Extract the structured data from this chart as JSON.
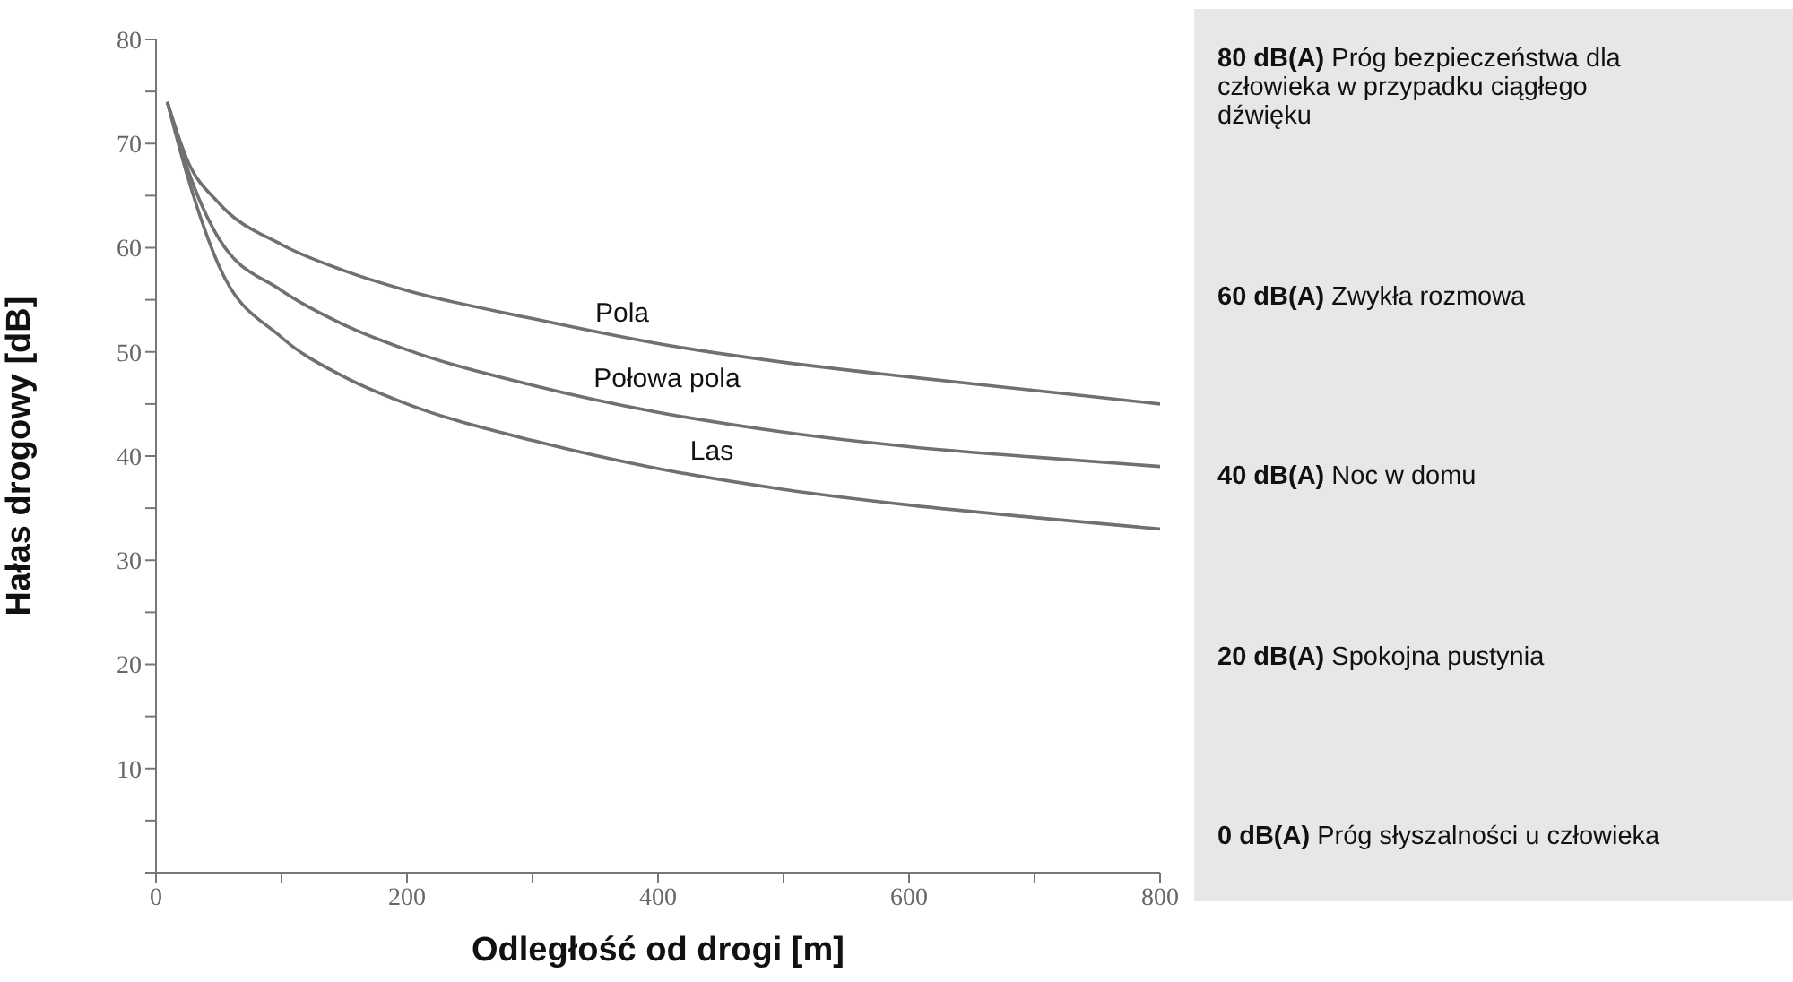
{
  "chart_data": {
    "type": "line",
    "xlabel": "Odległość od drogi [m]",
    "ylabel": "Hałas drogowy [dB]",
    "xlim": [
      0,
      800
    ],
    "ylim": [
      0,
      80
    ],
    "xticks": [
      0,
      {
        "value": 100,
        "label": null
      },
      200,
      {
        "value": 300,
        "label": null
      },
      400,
      {
        "value": 500,
        "label": null
      },
      600,
      {
        "value": 700,
        "label": null
      },
      800
    ],
    "yticks": [
      {
        "value": 0,
        "label": null
      },
      {
        "value": 5,
        "label": null
      },
      10,
      {
        "value": 15,
        "label": null
      },
      20,
      {
        "value": 25,
        "label": null
      },
      30,
      {
        "value": 35,
        "label": null
      },
      40,
      {
        "value": 45,
        "label": null
      },
      50,
      {
        "value": 55,
        "label": null
      },
      60,
      {
        "value": 65,
        "label": null
      },
      70,
      {
        "value": 75,
        "label": null
      },
      80
    ],
    "marker": "none",
    "series": [
      {
        "name": "Pola",
        "color": "#707070",
        "x": [
          9,
          25,
          50,
          100,
          150,
          200,
          300,
          400,
          500,
          600,
          700,
          800
        ],
        "values": [
          74,
          68.4,
          64.3,
          60.3,
          57.8,
          55.9,
          53.2,
          50.8,
          49,
          47.6,
          46.3,
          45
        ]
      },
      {
        "name": "Połowa pola",
        "color": "#707070",
        "x": [
          9,
          25,
          50,
          100,
          150,
          200,
          300,
          400,
          500,
          600,
          700,
          800
        ],
        "values": [
          74,
          67.6,
          60.9,
          55.9,
          52.6,
          50.2,
          46.8,
          44.2,
          42.3,
          40.9,
          39.9,
          39
        ]
      },
      {
        "name": "Las",
        "color": "#707070",
        "x": [
          9,
          25,
          50,
          100,
          150,
          200,
          300,
          400,
          500,
          600,
          700,
          800
        ],
        "values": [
          74,
          66.9,
          58.3,
          51.4,
          47.6,
          45,
          41.5,
          38.8,
          36.8,
          35.3,
          34.1,
          33
        ]
      }
    ],
    "annotations": [
      "80 dB(A) Próg bezpieczeństwa dla człowieka w przypadku ciągłego dźwięku",
      "60 dB(A) Zwykła rozmowa",
      "40 dB(A) Noc w domu",
      "20 dB(A) Spokojna pustynia",
      "0 dB(A) Próg słyszalności u człowieka"
    ]
  }
}
